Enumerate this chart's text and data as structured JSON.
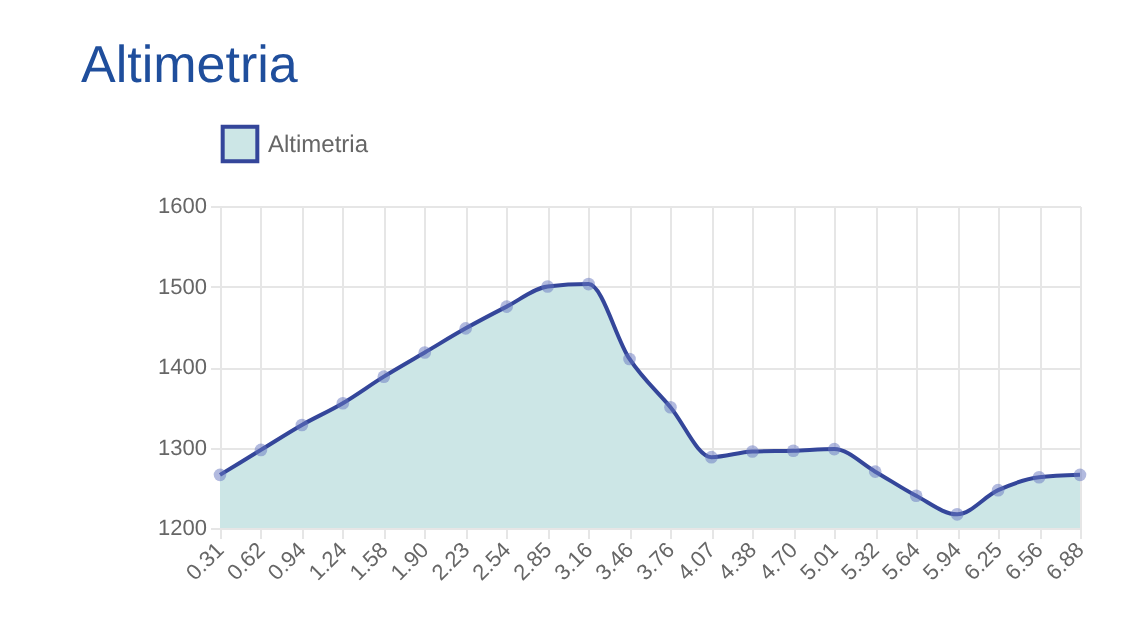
{
  "chart_data": {
    "type": "area",
    "title": "Altimetria",
    "categories": [
      "0.31",
      "0.62",
      "0.94",
      "1.24",
      "1.58",
      "1.90",
      "2.23",
      "2.54",
      "2.85",
      "3.16",
      "3.46",
      "3.76",
      "4.07",
      "4.38",
      "4.70",
      "5.01",
      "5.32",
      "5.64",
      "5.94",
      "6.25",
      "6.56",
      "6.88"
    ],
    "series": [
      {
        "name": "Altimetria",
        "color": "#34469a",
        "values": [
          1266,
          1297,
          1328,
          1355,
          1388,
          1418,
          1448,
          1475,
          1500,
          1503,
          1410,
          1350,
          1288,
          1295,
          1296,
          1298,
          1270,
          1240,
          1217,
          1247,
          1263,
          1266
        ]
      }
    ],
    "ylim": [
      1200,
      1600
    ],
    "yticks": [
      1200,
      1300,
      1400,
      1500,
      1600
    ],
    "grid": true,
    "legend": "top",
    "marker": "circle"
  }
}
